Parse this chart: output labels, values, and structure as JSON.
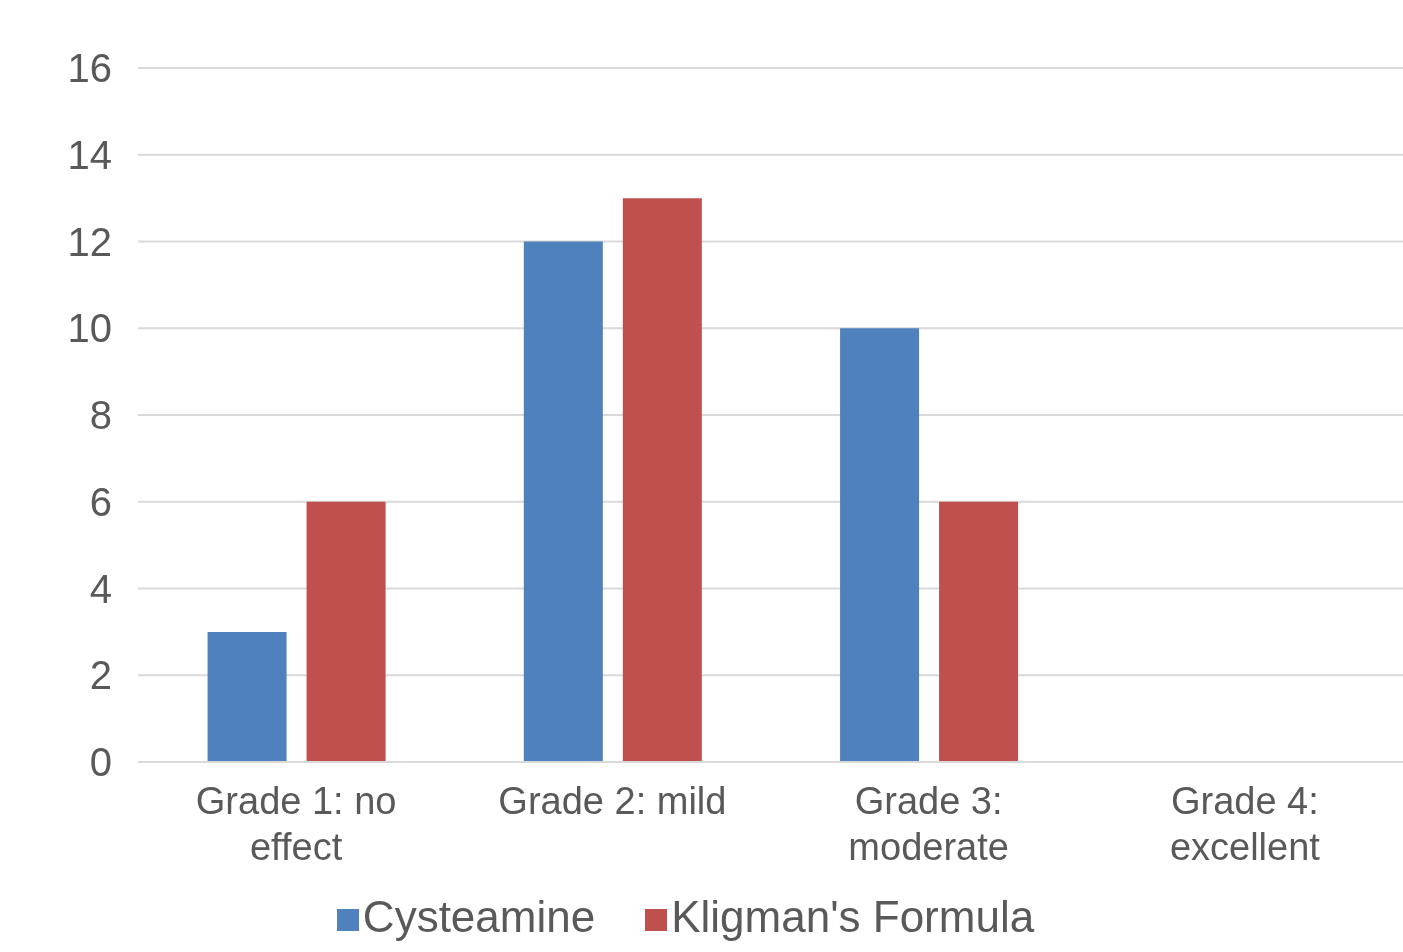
{
  "chart_data": {
    "type": "bar",
    "categories": [
      "Grade 1: no effect",
      "Grade 2: mild",
      "Grade 3: moderate",
      "Grade 4: excellent"
    ],
    "series": [
      {
        "name": "Cysteamine",
        "color": "#4f81bd",
        "values": [
          3,
          12,
          10,
          0
        ]
      },
      {
        "name": "Kligman's Formula",
        "color": "#c0504d",
        "values": [
          6,
          13,
          6,
          0
        ]
      }
    ],
    "ylim": [
      0,
      16
    ],
    "yticks": [
      0,
      2,
      4,
      6,
      8,
      10,
      12,
      14,
      16
    ],
    "grid": "y",
    "legend": "bottom"
  }
}
